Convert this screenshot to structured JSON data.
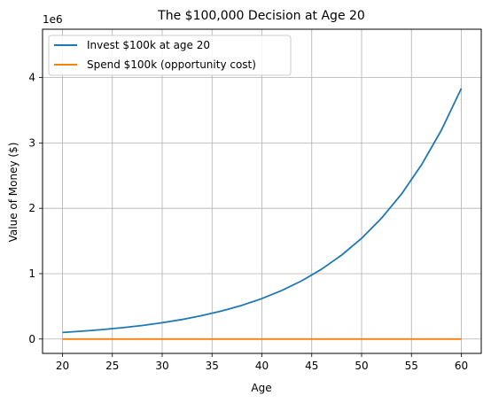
{
  "chart_data": {
    "type": "line",
    "title": "The $100,000 Decision at Age 20",
    "xlabel": "Age",
    "ylabel": "Value of Money ($)",
    "y_offset_label": "1e6",
    "xlim": [
      18,
      62
    ],
    "ylim": [
      -220000,
      4740000
    ],
    "x_ticks": [
      20,
      25,
      30,
      35,
      40,
      45,
      50,
      55,
      60
    ],
    "y_ticks": [
      0,
      1000000,
      2000000,
      3000000,
      4000000
    ],
    "y_tick_labels": [
      "0",
      "1",
      "2",
      "3",
      "4"
    ],
    "grid": true,
    "legend_position": "upper-left",
    "x": [
      20,
      22,
      24,
      26,
      28,
      30,
      32,
      34,
      36,
      38,
      40,
      42,
      44,
      46,
      48,
      50,
      52,
      54,
      56,
      58,
      60
    ],
    "series": [
      {
        "name": "Invest $100k at age 20",
        "color": "#1f77b4",
        "values": [
          100000,
          120000,
          144000,
          172800,
          207400,
          248800,
          298600,
          358300,
          430000,
          516000,
          619200,
          743000,
          891600,
          1070000,
          1284000,
          1540700,
          1848900,
          2218600,
          2662300,
          3194800,
          3833800
        ]
      },
      {
        "name": "Spend $100k (opportunity cost)",
        "color": "#ff7f0e",
        "values": [
          0,
          0,
          0,
          0,
          0,
          0,
          0,
          0,
          0,
          0,
          0,
          0,
          0,
          0,
          0,
          0,
          0,
          0,
          0,
          0,
          0
        ]
      }
    ]
  }
}
